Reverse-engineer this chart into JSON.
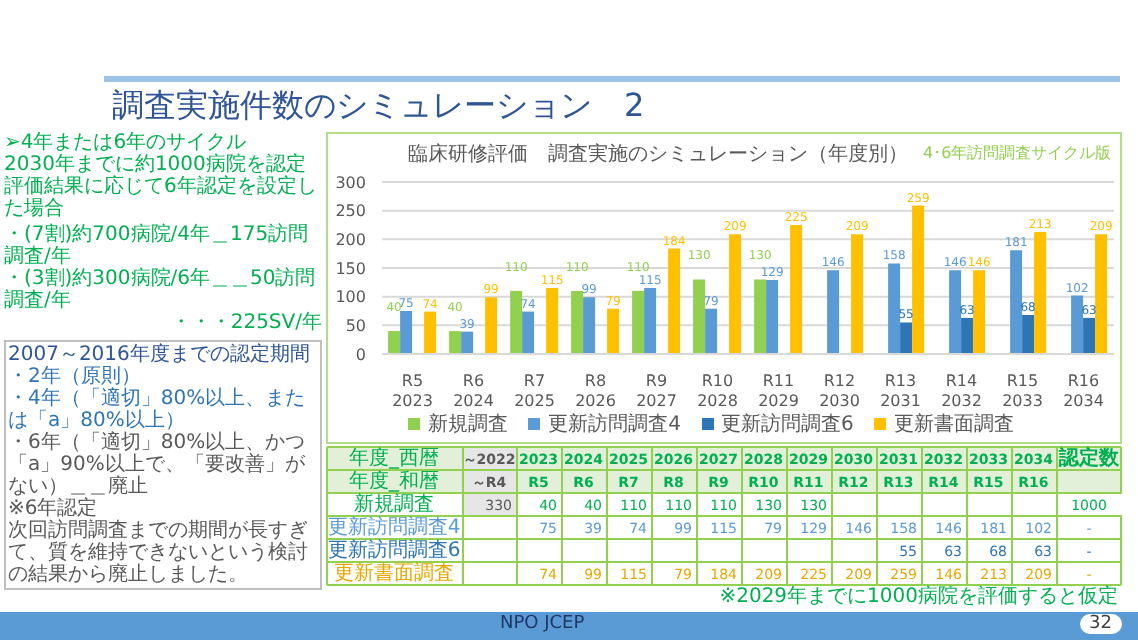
{
  "chart_data": [
    {
      "type": "bar",
      "title": "臨床研修評価　調査実施のシミュレーション（年度別）",
      "subtitle": "4･6年訪問調査サイクル版",
      "categories": [
        "R5\n2023",
        "R6\n2024",
        "R7\n2025",
        "R8\n2026",
        "R9\n2027",
        "R10\n2028",
        "R11\n2029",
        "R12\n2030",
        "R13\n2031",
        "R14\n2032",
        "R15\n2033",
        "R16\n2034"
      ],
      "series": [
        {
          "name": "新規調査",
          "color": "#92d050",
          "values": [
            40,
            40,
            110,
            110,
            110,
            130,
            130,
            null,
            null,
            null,
            null,
            null
          ]
        },
        {
          "name": "更新訪問調査4",
          "color": "#5b9bd5",
          "values": [
            75,
            39,
            74,
            99,
            115,
            79,
            129,
            146,
            158,
            146,
            181,
            102
          ]
        },
        {
          "name": "更新訪問調査6",
          "color": "#2e75b6",
          "values": [
            null,
            null,
            null,
            null,
            null,
            null,
            null,
            null,
            55,
            63,
            68,
            63
          ]
        },
        {
          "name": "更新書面調査",
          "color": "#ffc000",
          "values": [
            74,
            99,
            115,
            79,
            184,
            209,
            225,
            209,
            259,
            146,
            213,
            209
          ]
        }
      ],
      "ylim": [
        0,
        300
      ],
      "yticks": [
        0,
        50,
        100,
        150,
        200,
        250,
        300
      ],
      "grid": "y",
      "legend": "bottom",
      "data_labels": true,
      "annotations": [
        "調査実施件数のシミュレーション　2",
        "➢4年または6年のサイクル",
        "2030年までに約1000病院を認定",
        "評価結果に応じて6年認定を設定した場合",
        "・(7割)約700病院/4年＿175訪問調査/年",
        "・(3割)約300病院/6年＿＿50訪問調査/年",
        "・・・225SV/年",
        "2007～2016年度までの認定期間",
        "・2年（原則）",
        "・4年（「適切」80%以上、または「a」80%以上）",
        "・6年（「適切」80%以上、かつ「a」90%以上で、「要改善」がない）＿＿廃止",
        "※6年認定",
        "次回訪問調査までの期間が長すぎて、質を維持できないという検討の結果から廃止しました。",
        "※2029年までに1000病院を評価すると仮定",
        "NPO JCEP",
        "32"
      ]
    },
    {
      "type": "heatmap",
      "categories": [
        "～2022",
        "2023",
        "2024",
        "2025",
        "2026",
        "2027",
        "2028",
        "2029",
        "2030",
        "2031",
        "2032",
        "2033",
        "2034",
        "認定数"
      ],
      "y_categories": [
        "年度_和暦",
        "新規調査",
        "更新訪問調査4",
        "更新訪問調査6",
        "更新書面調査"
      ],
      "cells": [
        [
          null,
          null,
          null,
          null,
          null,
          null,
          null,
          null,
          null,
          null,
          null,
          null,
          null,
          null
        ],
        [
          330,
          40,
          40,
          110,
          110,
          110,
          130,
          130,
          null,
          null,
          null,
          null,
          null,
          1000
        ],
        [
          null,
          75,
          39,
          74,
          99,
          115,
          79,
          129,
          146,
          158,
          146,
          181,
          102,
          null
        ],
        [
          null,
          null,
          null,
          null,
          null,
          null,
          null,
          null,
          null,
          55,
          63,
          68,
          63,
          null
        ],
        [
          null,
          74,
          99,
          115,
          79,
          184,
          209,
          225,
          209,
          259,
          146,
          213,
          209,
          null
        ]
      ],
      "cell_labels": [
        [
          "～R4",
          "R5",
          "R6",
          "R7",
          "R8",
          "R9",
          "R10",
          "R11",
          "R12",
          "R13",
          "R14",
          "R15",
          "R16",
          null
        ],
        [
          "330",
          "40",
          "40",
          "110",
          "110",
          "110",
          "130",
          "130",
          null,
          null,
          null,
          null,
          null,
          "1000"
        ],
        [
          null,
          "75",
          "39",
          "74",
          "99",
          "115",
          "79",
          "129",
          "146",
          "158",
          "146",
          "181",
          "102",
          "-"
        ],
        [
          null,
          null,
          null,
          null,
          null,
          null,
          null,
          null,
          null,
          "55",
          "63",
          "68",
          "63",
          "-"
        ],
        [
          null,
          "74",
          "99",
          "115",
          "79",
          "184",
          "209",
          "225",
          "209",
          "259",
          "146",
          "213",
          "209",
          "-"
        ]
      ],
      "annotations": [
        "年度_西暦"
      ]
    }
  ]
}
